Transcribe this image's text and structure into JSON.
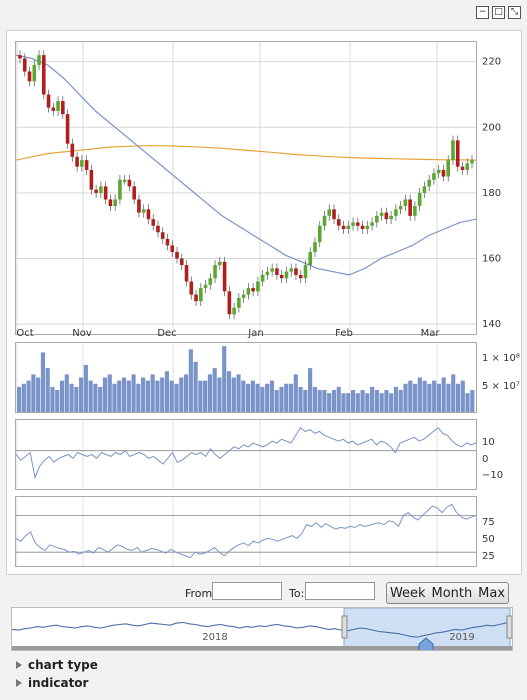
{
  "window": {
    "buttons": [
      "−",
      "□",
      "⤡"
    ]
  },
  "colors": {
    "up": "#5aa832",
    "down": "#b01e1e",
    "ma_short": "#7a94c9",
    "ma_long": "#e8a33a",
    "volume": "#7a94c9",
    "indicator": "#7a94c9"
  },
  "chart_data": {
    "type": "candlestick",
    "x_labels": [
      "Oct",
      "Nov",
      "Dec",
      "Jan",
      "Feb",
      "Mar"
    ],
    "y_ticks": [
      140,
      160,
      180,
      200,
      220
    ],
    "ylim": [
      137,
      226
    ],
    "closes": [
      221,
      217,
      214,
      219,
      222,
      210,
      206,
      205,
      208,
      204,
      195,
      191,
      188,
      190,
      187,
      181,
      180,
      182,
      178,
      176,
      178,
      184,
      184,
      182,
      178,
      174,
      175,
      172,
      170,
      168,
      166,
      164,
      162,
      160,
      158,
      153,
      149,
      147,
      151,
      152,
      154,
      158,
      159,
      150,
      143,
      145,
      148,
      149,
      151,
      150,
      153,
      155,
      156,
      157,
      155,
      154,
      156,
      157,
      155,
      154,
      158,
      162,
      165,
      170,
      173,
      175,
      172,
      170,
      169,
      170,
      171,
      170,
      169,
      170,
      171,
      173,
      174,
      172,
      173,
      175,
      176,
      178,
      173,
      176,
      180,
      182,
      184,
      186,
      187,
      185,
      190,
      196,
      188,
      187,
      189,
      190
    ],
    "ma_short": [
      222,
      221,
      219,
      215,
      210,
      205,
      201,
      197,
      193,
      189,
      185,
      181,
      177,
      173,
      170,
      167,
      164,
      161,
      159,
      157,
      156,
      155,
      157,
      160,
      162,
      164,
      167,
      169,
      171,
      172
    ],
    "ma_long": [
      190,
      191,
      192,
      192.5,
      193,
      193.5,
      194,
      194.2,
      194.4,
      194.4,
      194.3,
      194.1,
      193.9,
      193.6,
      193.2,
      192.8,
      192.4,
      192,
      191.6,
      191.3,
      191,
      190.8,
      190.6,
      190.5,
      190.4,
      190.3,
      190.2,
      190.1,
      190.1,
      190
    ],
    "volume_ticks": [
      "1 × 10⁸",
      "5 × 10⁷"
    ],
    "volume": [
      0.4,
      0.45,
      0.5,
      0.6,
      0.55,
      0.95,
      0.7,
      0.4,
      0.35,
      0.5,
      0.6,
      0.45,
      0.4,
      0.55,
      0.75,
      0.5,
      0.45,
      0.4,
      0.55,
      0.6,
      0.45,
      0.5,
      0.55,
      0.5,
      0.6,
      0.45,
      0.55,
      0.5,
      0.6,
      0.5,
      0.55,
      0.65,
      0.5,
      0.45,
      0.55,
      0.6,
      1.0,
      0.8,
      0.5,
      0.5,
      0.6,
      0.7,
      0.55,
      1.05,
      0.65,
      0.55,
      0.6,
      0.5,
      0.45,
      0.5,
      0.45,
      0.4,
      0.45,
      0.5,
      0.35,
      0.4,
      0.45,
      0.45,
      0.6,
      0.4,
      0.35,
      0.7,
      0.4,
      0.35,
      0.35,
      0.3,
      0.35,
      0.4,
      0.3,
      0.3,
      0.35,
      0.3,
      0.35,
      0.3,
      0.4,
      0.35,
      0.3,
      0.35,
      0.3,
      0.4,
      0.35,
      0.45,
      0.5,
      0.45,
      0.55,
      0.5,
      0.45,
      0.5,
      0.45,
      0.55,
      0.45,
      0.6,
      0.45,
      0.5,
      0.3,
      0.35
    ],
    "ind1_ticks": [
      "10",
      "0",
      "−10"
    ],
    "ind1_ylim": [
      -20,
      16
    ],
    "ind1": [
      -2,
      -5,
      -3,
      -1,
      -14,
      -8,
      -5,
      -3,
      -6,
      -4,
      -3,
      -2,
      -4,
      -1,
      -2,
      -3,
      -2,
      -4,
      -1,
      -2,
      -3,
      -1,
      -2,
      0,
      -3,
      -2,
      -1,
      -2,
      -4,
      -3,
      -5,
      -7,
      -4,
      -1,
      -6,
      -5,
      -3,
      -1,
      -2,
      -1,
      -3,
      1,
      -2,
      -4,
      -2,
      0,
      2,
      1,
      3,
      2,
      4,
      3,
      2,
      3,
      5,
      4,
      6,
      5,
      4,
      8,
      12,
      10,
      11,
      9,
      10,
      8,
      7,
      6,
      5,
      6,
      4,
      5,
      3,
      4,
      5,
      6,
      3,
      5,
      4,
      2,
      -1,
      4,
      5,
      6,
      7,
      5,
      6,
      8,
      10,
      12,
      9,
      8,
      5,
      3,
      2,
      4,
      3,
      4
    ],
    "ind2_ticks": [
      "75",
      "50",
      "25"
    ],
    "ind2_ylim": [
      15,
      90
    ],
    "ind2": [
      45,
      42,
      48,
      52,
      40,
      35,
      32,
      38,
      36,
      34,
      33,
      30,
      31,
      28,
      30,
      32,
      29,
      35,
      33,
      30,
      34,
      38,
      36,
      33,
      32,
      35,
      30,
      32,
      34,
      33,
      31,
      29,
      33,
      30,
      28,
      26,
      24,
      30,
      28,
      29,
      32,
      35,
      30,
      26,
      31,
      35,
      38,
      40,
      37,
      42,
      40,
      43,
      45,
      44,
      42,
      44,
      46,
      48,
      45,
      50,
      60,
      58,
      62,
      57,
      61,
      58,
      55,
      57,
      56,
      58,
      57,
      60,
      58,
      59,
      61,
      62,
      60,
      64,
      63,
      58,
      70,
      73,
      68,
      65,
      70,
      75,
      80,
      78,
      73,
      79,
      82,
      73,
      68,
      66,
      68,
      70
    ]
  },
  "controls": {
    "from_label": "From:",
    "to_label": "To:",
    "from_value": "",
    "to_value": "",
    "week_label": "Week",
    "month_label": "Month",
    "max_label": "Max"
  },
  "navigator": {
    "years": [
      "2018",
      "2019"
    ],
    "series": [
      48,
      47,
      49,
      50,
      52,
      51,
      53,
      54,
      52,
      51,
      50,
      52,
      53,
      51,
      50,
      52,
      54,
      55,
      56,
      54,
      53,
      55,
      57,
      56,
      55,
      54,
      57,
      58,
      56,
      55,
      53,
      52,
      54,
      55,
      53,
      52,
      50,
      52,
      51,
      53,
      52,
      54,
      55,
      53,
      52,
      50,
      51,
      53,
      52,
      50,
      48,
      49,
      47,
      46,
      48,
      50,
      49,
      47,
      45,
      44,
      43,
      42,
      40,
      38,
      37,
      39,
      41,
      43,
      44,
      46,
      48,
      47,
      49,
      51,
      52,
      54,
      53,
      55,
      57,
      58
    ]
  },
  "menus": {
    "chart_type": "chart type",
    "indicator": "indicator"
  }
}
